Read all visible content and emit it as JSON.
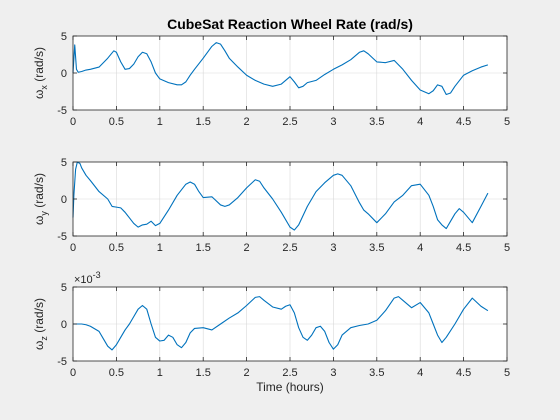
{
  "chart_data": [
    {
      "type": "line",
      "title": "CubeSat Reaction Wheel Rate (rad/s)",
      "ylabel_base": "ω",
      "ylabel_sub": "x",
      "ylabel_unit": " (rad/s)",
      "xlabel": "",
      "exponent": "",
      "xlim": [
        0,
        5
      ],
      "ylim": [
        -5,
        5
      ],
      "xticks": [
        0,
        0.5,
        1,
        1.5,
        2,
        2.5,
        3,
        3.5,
        4,
        4.5,
        5
      ],
      "yticks": [
        -5,
        0,
        5
      ],
      "grid": true,
      "color": "#0072bd",
      "x": [
        0,
        0.02,
        0.04,
        0.06,
        0.1,
        0.15,
        0.2,
        0.3,
        0.4,
        0.47,
        0.5,
        0.55,
        0.6,
        0.65,
        0.7,
        0.75,
        0.8,
        0.85,
        0.9,
        0.95,
        1.0,
        1.1,
        1.2,
        1.25,
        1.3,
        1.35,
        1.4,
        1.5,
        1.6,
        1.65,
        1.7,
        1.75,
        1.8,
        1.9,
        2.0,
        2.1,
        2.2,
        2.3,
        2.4,
        2.5,
        2.55,
        2.6,
        2.65,
        2.7,
        2.8,
        2.9,
        3.0,
        3.1,
        3.2,
        3.3,
        3.35,
        3.4,
        3.5,
        3.6,
        3.7,
        3.8,
        3.9,
        4.0,
        4.1,
        4.15,
        4.2,
        4.25,
        4.3,
        4.35,
        4.4,
        4.5,
        4.6,
        4.7,
        4.78
      ],
      "y": [
        0,
        3.8,
        0.5,
        0.1,
        0.2,
        0.4,
        0.5,
        0.8,
        2.0,
        3.0,
        2.8,
        1.5,
        0.5,
        0.6,
        1.2,
        2.2,
        2.8,
        2.6,
        1.5,
        0.0,
        -0.8,
        -1.3,
        -1.6,
        -1.6,
        -1.2,
        -0.3,
        0.5,
        2.0,
        3.6,
        4.1,
        3.9,
        3.0,
        2.0,
        0.8,
        -0.3,
        -1.0,
        -1.5,
        -1.8,
        -1.5,
        -0.5,
        -1.2,
        -2.0,
        -1.8,
        -1.3,
        -1.0,
        -0.2,
        0.5,
        1.1,
        1.8,
        2.8,
        3.0,
        2.6,
        1.5,
        1.4,
        1.7,
        0.5,
        -1.0,
        -2.3,
        -2.8,
        -2.4,
        -1.6,
        -1.8,
        -2.9,
        -2.7,
        -1.8,
        -0.3,
        0.3,
        0.8,
        1.1
      ]
    },
    {
      "type": "line",
      "title": "",
      "ylabel_base": "ω",
      "ylabel_sub": "y",
      "ylabel_unit": " (rad/s)",
      "xlabel": "",
      "exponent": "",
      "xlim": [
        0,
        5
      ],
      "ylim": [
        -5,
        5
      ],
      "xticks": [
        0,
        0.5,
        1,
        1.5,
        2,
        2.5,
        3,
        3.5,
        4,
        4.5,
        5
      ],
      "yticks": [
        -5,
        0,
        5
      ],
      "grid": true,
      "color": "#0072bd",
      "x": [
        0,
        0.01,
        0.03,
        0.05,
        0.08,
        0.1,
        0.15,
        0.2,
        0.3,
        0.4,
        0.45,
        0.5,
        0.55,
        0.6,
        0.7,
        0.75,
        0.8,
        0.85,
        0.9,
        0.95,
        1.0,
        1.1,
        1.2,
        1.3,
        1.35,
        1.4,
        1.45,
        1.5,
        1.6,
        1.7,
        1.75,
        1.8,
        1.9,
        2.0,
        2.1,
        2.15,
        2.2,
        2.3,
        2.4,
        2.5,
        2.55,
        2.6,
        2.7,
        2.8,
        2.9,
        3.0,
        3.05,
        3.1,
        3.2,
        3.3,
        3.35,
        3.4,
        3.5,
        3.6,
        3.7,
        3.8,
        3.9,
        4.0,
        4.1,
        4.15,
        4.2,
        4.25,
        4.3,
        4.35,
        4.4,
        4.45,
        4.5,
        4.6,
        4.7,
        4.78
      ],
      "y": [
        -2.5,
        0.5,
        4.0,
        5.0,
        4.8,
        4.2,
        3.2,
        2.5,
        1.0,
        0.0,
        -1.0,
        -1.1,
        -1.2,
        -1.8,
        -3.3,
        -3.8,
        -3.5,
        -3.4,
        -3.0,
        -3.6,
        -3.3,
        -1.5,
        0.5,
        2.0,
        2.3,
        2.0,
        1.0,
        0.2,
        0.3,
        -0.8,
        -1.0,
        -0.8,
        0.2,
        1.5,
        2.6,
        2.4,
        1.5,
        0.0,
        -1.8,
        -3.8,
        -4.2,
        -3.5,
        -1.0,
        1.0,
        2.2,
        3.2,
        3.4,
        3.2,
        1.8,
        -0.5,
        -1.5,
        -2.0,
        -3.2,
        -2.0,
        -0.4,
        0.5,
        1.8,
        2.0,
        0.5,
        -1.0,
        -2.8,
        -3.5,
        -4.0,
        -3.0,
        -2.0,
        -1.3,
        -1.8,
        -3.2,
        -1.0,
        0.8
      ]
    },
    {
      "type": "line",
      "title": "",
      "ylabel_base": "ω",
      "ylabel_sub": "z",
      "ylabel_unit": " (rad/s)",
      "xlabel": "Time (hours)",
      "exponent": "×10",
      "exponent_power": "-3",
      "xlim": [
        0,
        5
      ],
      "ylim": [
        -5,
        5
      ],
      "xticks": [
        0,
        0.5,
        1,
        1.5,
        2,
        2.5,
        3,
        3.5,
        4,
        4.5,
        5
      ],
      "yticks": [
        -5,
        0,
        5
      ],
      "grid": true,
      "color": "#0072bd",
      "x": [
        0,
        0.05,
        0.1,
        0.15,
        0.2,
        0.3,
        0.35,
        0.4,
        0.45,
        0.5,
        0.55,
        0.6,
        0.65,
        0.7,
        0.75,
        0.8,
        0.85,
        0.9,
        0.95,
        1.0,
        1.05,
        1.1,
        1.15,
        1.2,
        1.25,
        1.3,
        1.35,
        1.4,
        1.5,
        1.6,
        1.7,
        1.8,
        1.9,
        2.0,
        2.1,
        2.15,
        2.2,
        2.3,
        2.4,
        2.45,
        2.5,
        2.55,
        2.6,
        2.65,
        2.7,
        2.75,
        2.8,
        2.85,
        2.9,
        2.95,
        3.0,
        3.05,
        3.1,
        3.2,
        3.3,
        3.4,
        3.5,
        3.6,
        3.7,
        3.75,
        3.8,
        3.9,
        4.0,
        4.1,
        4.15,
        4.2,
        4.25,
        4.3,
        4.4,
        4.5,
        4.6,
        4.7,
        4.78
      ],
      "y": [
        0,
        0,
        0,
        -0.1,
        -0.3,
        -1.0,
        -2.0,
        -3.0,
        -3.5,
        -2.8,
        -1.8,
        -0.8,
        0.0,
        1.0,
        2.0,
        2.5,
        2.0,
        0.0,
        -1.8,
        -2.3,
        -2.2,
        -1.5,
        -1.8,
        -2.8,
        -3.2,
        -2.5,
        -1.2,
        -0.6,
        -0.5,
        -0.8,
        0.0,
        0.8,
        1.5,
        2.5,
        3.6,
        3.7,
        3.2,
        2.3,
        2.0,
        2.4,
        2.6,
        1.5,
        -0.5,
        -1.8,
        -2.2,
        -1.5,
        -0.5,
        -0.3,
        -1.0,
        -2.5,
        -3.4,
        -2.8,
        -1.5,
        -0.5,
        -0.2,
        0.0,
        0.5,
        1.8,
        3.5,
        3.7,
        3.2,
        2.2,
        2.9,
        1.5,
        0.0,
        -1.5,
        -2.5,
        -1.8,
        0.0,
        2.0,
        3.5,
        2.4,
        1.8
      ]
    }
  ]
}
